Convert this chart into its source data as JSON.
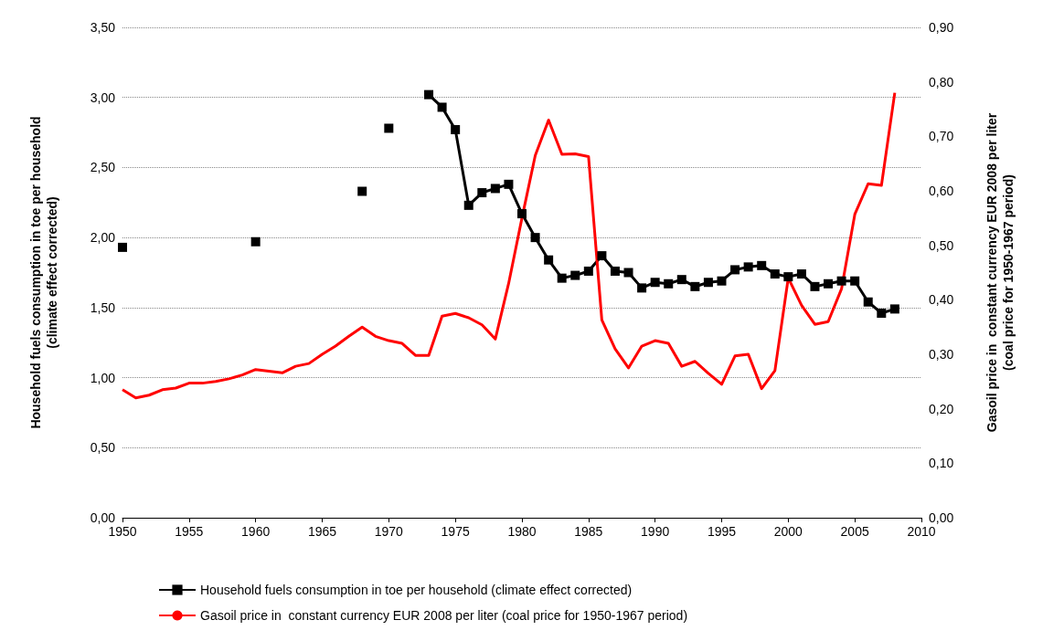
{
  "chart_data": {
    "type": "line",
    "ylabel": "Household fuels consumption in toe per household\n(climate effect corrected)",
    "y2label": "Gasoil price in  constant currency EUR 2008 per liter\n(coal price for 1950-1967 period)",
    "x": [
      1950,
      1951,
      1952,
      1953,
      1954,
      1955,
      1956,
      1957,
      1958,
      1959,
      1960,
      1961,
      1962,
      1963,
      1964,
      1965,
      1966,
      1967,
      1968,
      1969,
      1970,
      1971,
      1972,
      1973,
      1974,
      1975,
      1976,
      1977,
      1978,
      1979,
      1980,
      1981,
      1982,
      1983,
      1984,
      1985,
      1986,
      1987,
      1988,
      1989,
      1990,
      1991,
      1992,
      1993,
      1994,
      1995,
      1996,
      1997,
      1998,
      1999,
      2000,
      2001,
      2002,
      2003,
      2004,
      2005,
      2006,
      2007,
      2008
    ],
    "series": [
      {
        "name": "Household fuels consumption in toe per household (climate effect corrected)",
        "color": "#000000",
        "marker": "square",
        "values": [
          1.93,
          null,
          null,
          null,
          null,
          null,
          null,
          null,
          null,
          null,
          1.97,
          null,
          null,
          null,
          null,
          null,
          null,
          null,
          2.33,
          null,
          2.78,
          null,
          null,
          3.02,
          2.93,
          2.77,
          2.23,
          2.32,
          2.35,
          2.38,
          2.17,
          2.0,
          1.84,
          1.71,
          1.73,
          1.76,
          1.87,
          1.76,
          1.75,
          1.64,
          1.68,
          1.67,
          1.7,
          1.65,
          1.68,
          1.69,
          1.77,
          1.79,
          1.8,
          1.74,
          1.72,
          1.74,
          1.65,
          1.67,
          1.69,
          1.69,
          1.54,
          1.46,
          1.49
        ]
      },
      {
        "name": "Gasoil price in  constant currency EUR 2008 per liter (coal price for 1950-1967 period)",
        "color": "#ff0000",
        "marker": "none",
        "axis": "y2",
        "values": [
          0.235,
          0.22,
          0.225,
          0.235,
          0.238,
          0.247,
          0.247,
          0.25,
          0.255,
          0.262,
          0.272,
          0.269,
          0.266,
          0.278,
          0.283,
          0.3,
          0.315,
          0.333,
          0.35,
          0.333,
          0.325,
          0.32,
          0.298,
          0.298,
          0.37,
          0.375,
          0.367,
          0.354,
          0.328,
          0.43,
          0.55,
          0.665,
          0.73,
          0.667,
          0.668,
          0.663,
          0.363,
          0.31,
          0.275,
          0.315,
          0.325,
          0.32,
          0.278,
          0.287,
          0.265,
          0.245,
          0.297,
          0.3,
          0.237,
          0.27,
          0.44,
          0.39,
          0.355,
          0.36,
          0.42,
          0.557,
          0.613,
          0.61,
          0.78
        ]
      }
    ],
    "xlim": [
      1950,
      2010
    ],
    "xticks": [
      1950,
      1955,
      1960,
      1965,
      1970,
      1975,
      1980,
      1985,
      1990,
      1995,
      2000,
      2005,
      2010
    ],
    "ylim": [
      0,
      3.5
    ],
    "yticks": [
      {
        "value": 0,
        "label": "0,00"
      },
      {
        "value": 0.5,
        "label": "0,50"
      },
      {
        "value": 1,
        "label": "1,00"
      },
      {
        "value": 1.5,
        "label": "1,50"
      },
      {
        "value": 2,
        "label": "2,00"
      },
      {
        "value": 2.5,
        "label": "2,50"
      },
      {
        "value": 3,
        "label": "3,00"
      },
      {
        "value": 3.5,
        "label": "3,50"
      }
    ],
    "y2lim": [
      0,
      0.9
    ],
    "y2ticks": [
      {
        "value": 0,
        "label": "0,00"
      },
      {
        "value": 0.1,
        "label": "0,10"
      },
      {
        "value": 0.2,
        "label": "0,20"
      },
      {
        "value": 0.3,
        "label": "0,30"
      },
      {
        "value": 0.4,
        "label": "0,40"
      },
      {
        "value": 0.5,
        "label": "0,50"
      },
      {
        "value": 0.6,
        "label": "0,60"
      },
      {
        "value": 0.7,
        "label": "0,70"
      },
      {
        "value": 0.8,
        "label": "0,80"
      },
      {
        "value": 0.9,
        "label": "0,90"
      }
    ],
    "grid": "y",
    "legend": "bottom"
  }
}
